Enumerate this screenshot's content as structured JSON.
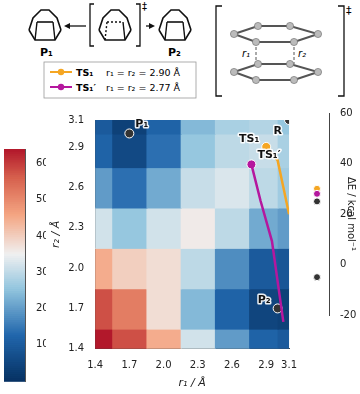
{
  "chart_data": {
    "type": "heatmap",
    "x_label": "r₁ / Å",
    "y_label": "r₂ / Å",
    "x": [
      1.4,
      1.7,
      2.0,
      2.3,
      2.6,
      2.9,
      3.1
    ],
    "y": [
      1.4,
      1.7,
      2.0,
      2.3,
      2.6,
      2.9,
      3.1
    ],
    "xlim": [
      1.4,
      3.1
    ],
    "xticks": [
      1.4,
      1.7,
      {
        "value": 2,
        "label": "2.0"
      },
      2.3,
      2.6,
      2.9,
      3.1
    ],
    "ylim": [
      1.4,
      3.1
    ],
    "yticks": [
      1.4,
      1.7,
      {
        "value": 2,
        "label": "2.0"
      },
      2.3,
      2.6,
      2.9,
      3.1
    ],
    "cells": [
      [
        64,
        58,
        45,
        32,
        20,
        12,
        10
      ],
      [
        58,
        52,
        38,
        24,
        12,
        5,
        4
      ],
      [
        45,
        40,
        38,
        30,
        18,
        10,
        9
      ],
      [
        32,
        26,
        32,
        36,
        30,
        22,
        20
      ],
      [
        20,
        14,
        22,
        31,
        33,
        30,
        27
      ],
      [
        12,
        6,
        14,
        26,
        30,
        31,
        28
      ],
      [
        10,
        4,
        12,
        24,
        28,
        29,
        26
      ]
    ],
    "colorbar": {
      "range": [
        0,
        64
      ],
      "ticks": [
        10,
        20,
        30,
        40,
        50,
        60
      ]
    },
    "z_label": "ΔE / kcal mol⁻¹",
    "zlim": [
      -20,
      60
    ],
    "zticks": [
      -20,
      0,
      20,
      40,
      60
    ],
    "series": [
      {
        "name": "TS₁",
        "label": "r₁ = r₂ = 2.90 Å",
        "color": "#f5a623",
        "r1": [
          2.9,
          3.0,
          3.05,
          3.1
        ],
        "r2": [
          2.9,
          2.8,
          2.6,
          2.4
        ]
      },
      {
        "name": "TS₁′",
        "label": "r₁ = r₂ = 2.77 Å",
        "color": "#b5179e",
        "r1": [
          2.77,
          2.85,
          2.95,
          3.0,
          3.05
        ],
        "r2": [
          2.77,
          2.5,
          2.2,
          1.9,
          1.6
        ]
      }
    ],
    "points": [
      {
        "name": "P₁",
        "r1": 1.7,
        "r2": 3.0,
        "energy": -5,
        "color": "#333333"
      },
      {
        "name": "P₂",
        "r1": 3.0,
        "r2": 1.7,
        "energy": -5,
        "color": "#333333"
      },
      {
        "name": "R",
        "r1": 3.1,
        "r2": 3.1,
        "energy": 25,
        "color": "#333333"
      },
      {
        "name": "TS₁",
        "r1": 2.9,
        "r2": 2.9,
        "energy": 30,
        "color": "#f5a623"
      },
      {
        "name": "TS₁′",
        "r1": 2.77,
        "r2": 2.77,
        "energy": 28,
        "color": "#b5179e"
      }
    ],
    "scheme": {
      "left": "P₁",
      "right": "P₂",
      "dagger": "‡",
      "distances": [
        "r₁",
        "r₂"
      ]
    }
  }
}
